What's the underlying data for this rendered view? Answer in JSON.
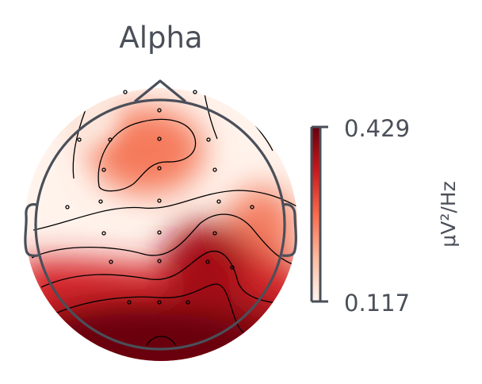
{
  "chart_data": {
    "type": "heatmap",
    "subtype": "eeg-topomap",
    "title": "Alpha",
    "colormap": "Reds",
    "colorbar": {
      "min": 0.117,
      "max": 0.429,
      "min_label": "0.117",
      "max_label": "0.429",
      "unit_label": "μV²/Hz"
    },
    "contour_lines": true,
    "sensors_shown": true,
    "head_outline": true,
    "power_pattern": [
      {
        "region": "frontal-left",
        "level": "medium"
      },
      {
        "region": "frontal-right",
        "level": "low"
      },
      {
        "region": "temporal-left",
        "level": "low"
      },
      {
        "region": "temporal-right",
        "level": "medium"
      },
      {
        "region": "central",
        "level": "low"
      },
      {
        "region": "centro-parietal-right",
        "level": "high"
      },
      {
        "region": "parietal",
        "level": "high"
      },
      {
        "region": "occipital",
        "level": "very-high"
      }
    ],
    "colors": {
      "low": "#fff1ea",
      "medium": "#f88d6e",
      "high": "#c81b20",
      "very-high": "#6e0011",
      "outline": "#4a4f59"
    }
  }
}
